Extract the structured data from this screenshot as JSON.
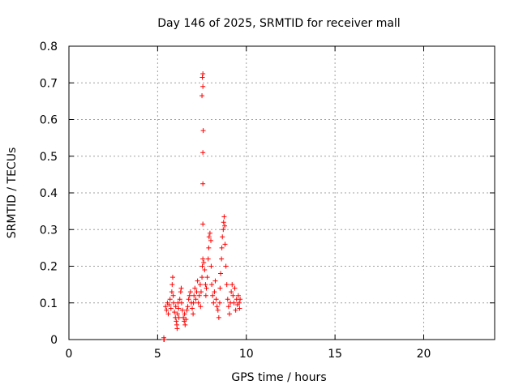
{
  "chart_data": {
    "type": "scatter",
    "title": "Day 146 of 2025, SRMTID for receiver mall",
    "xlabel": "GPS time / hours",
    "ylabel": "SRMTID / TECUs",
    "xlim": [
      0,
      24
    ],
    "ylim": [
      0,
      0.8
    ],
    "xticks": [
      0,
      5,
      10,
      15,
      20
    ],
    "xtick_labels": [
      "0",
      "5",
      "10",
      "15",
      "20"
    ],
    "yticks": [
      0,
      0.1,
      0.2,
      0.3,
      0.4,
      0.5,
      0.6,
      0.7,
      0.8
    ],
    "ytick_labels": [
      "0",
      "0.1",
      "0.2",
      "0.3",
      "0.4",
      "0.5",
      "0.6",
      "0.7",
      "0.8"
    ],
    "grid": true,
    "marker": "+",
    "color": "#ff0000",
    "series": [
      {
        "name": "SRMTID",
        "points": [
          [
            5.35,
            0.0
          ],
          [
            5.35,
            0.005
          ],
          [
            5.37,
            0.0
          ],
          [
            5.45,
            0.09
          ],
          [
            5.5,
            0.08
          ],
          [
            5.55,
            0.1
          ],
          [
            5.6,
            0.07
          ],
          [
            5.65,
            0.095
          ],
          [
            5.7,
            0.11
          ],
          [
            5.75,
            0.085
          ],
          [
            5.8,
            0.13
          ],
          [
            5.82,
            0.15
          ],
          [
            5.85,
            0.17
          ],
          [
            5.88,
            0.12
          ],
          [
            5.9,
            0.1
          ],
          [
            5.95,
            0.075
          ],
          [
            6.0,
            0.06
          ],
          [
            6.02,
            0.09
          ],
          [
            6.05,
            0.05
          ],
          [
            6.08,
            0.04
          ],
          [
            6.1,
            0.03
          ],
          [
            6.12,
            0.07
          ],
          [
            6.15,
            0.1
          ],
          [
            6.18,
            0.085
          ],
          [
            6.2,
            0.06
          ],
          [
            6.25,
            0.11
          ],
          [
            6.3,
            0.13
          ],
          [
            6.33,
            0.14
          ],
          [
            6.35,
            0.1
          ],
          [
            6.4,
            0.08
          ],
          [
            6.45,
            0.06
          ],
          [
            6.5,
            0.05
          ],
          [
            6.52,
            0.07
          ],
          [
            6.55,
            0.04
          ],
          [
            6.6,
            0.055
          ],
          [
            6.65,
            0.08
          ],
          [
            6.7,
            0.09
          ],
          [
            6.75,
            0.11
          ],
          [
            6.8,
            0.12
          ],
          [
            6.85,
            0.13
          ],
          [
            6.9,
            0.1
          ],
          [
            6.95,
            0.085
          ],
          [
            7.0,
            0.07
          ],
          [
            7.02,
            0.1
          ],
          [
            7.05,
            0.12
          ],
          [
            7.1,
            0.14
          ],
          [
            7.15,
            0.11
          ],
          [
            7.2,
            0.13
          ],
          [
            7.25,
            0.16
          ],
          [
            7.3,
            0.1
          ],
          [
            7.35,
            0.12
          ],
          [
            7.4,
            0.15
          ],
          [
            7.42,
            0.09
          ],
          [
            7.45,
            0.13
          ],
          [
            7.5,
            0.17
          ],
          [
            7.52,
            0.2
          ],
          [
            7.55,
            0.22
          ],
          [
            7.6,
            0.21
          ],
          [
            7.65,
            0.19
          ],
          [
            7.7,
            0.15
          ],
          [
            7.72,
            0.12
          ],
          [
            7.75,
            0.14
          ],
          [
            7.8,
            0.17
          ],
          [
            7.85,
            0.22
          ],
          [
            7.88,
            0.25
          ],
          [
            7.9,
            0.28
          ],
          [
            7.95,
            0.29
          ],
          [
            8.0,
            0.27
          ],
          [
            8.02,
            0.2
          ],
          [
            8.05,
            0.15
          ],
          [
            8.1,
            0.12
          ],
          [
            8.15,
            0.1
          ],
          [
            8.2,
            0.13
          ],
          [
            8.25,
            0.16
          ],
          [
            8.3,
            0.11
          ],
          [
            8.35,
            0.09
          ],
          [
            8.4,
            0.08
          ],
          [
            8.45,
            0.06
          ],
          [
            8.5,
            0.1
          ],
          [
            8.52,
            0.14
          ],
          [
            8.55,
            0.18
          ],
          [
            8.6,
            0.22
          ],
          [
            8.62,
            0.25
          ],
          [
            8.65,
            0.28
          ],
          [
            8.7,
            0.3
          ],
          [
            8.72,
            0.32
          ],
          [
            8.75,
            0.335
          ],
          [
            8.78,
            0.31
          ],
          [
            8.8,
            0.26
          ],
          [
            8.85,
            0.2
          ],
          [
            8.9,
            0.15
          ],
          [
            8.95,
            0.11
          ],
          [
            9.0,
            0.09
          ],
          [
            9.05,
            0.07
          ],
          [
            9.1,
            0.1
          ],
          [
            9.15,
            0.13
          ],
          [
            9.2,
            0.15
          ],
          [
            9.25,
            0.12
          ],
          [
            9.3,
            0.1
          ],
          [
            9.35,
            0.14
          ],
          [
            9.4,
            0.08
          ],
          [
            9.45,
            0.11
          ],
          [
            9.5,
            0.095
          ],
          [
            9.55,
            0.12
          ],
          [
            9.6,
            0.1
          ],
          [
            9.62,
            0.085
          ],
          [
            9.65,
            0.11
          ],
          [
            7.55,
            0.315
          ],
          [
            7.55,
            0.425
          ],
          [
            7.55,
            0.51
          ],
          [
            7.57,
            0.57
          ],
          [
            7.5,
            0.665
          ],
          [
            7.55,
            0.69
          ],
          [
            7.52,
            0.715
          ],
          [
            7.55,
            0.725
          ]
        ]
      }
    ]
  }
}
